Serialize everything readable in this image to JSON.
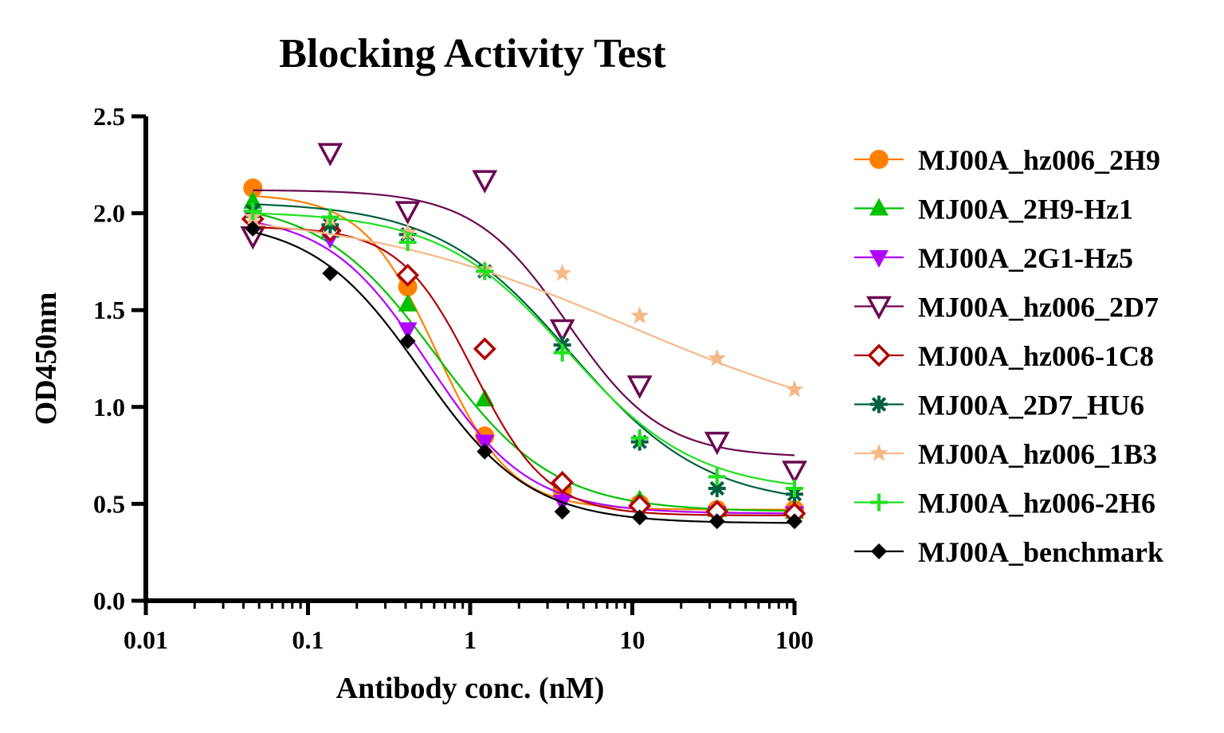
{
  "chart_data": {
    "type": "scatter",
    "title": "Blocking Activity Test",
    "xlabel": "Antibody conc. (nM)",
    "ylabel": "OD450nm",
    "xscale": "log",
    "xlim": [
      0.01,
      100
    ],
    "ylim": [
      0.0,
      2.5
    ],
    "xticks": [
      0.01,
      0.1,
      1,
      10,
      100
    ],
    "xtick_labels": [
      "0.01",
      "0.1",
      "1",
      "10",
      "100"
    ],
    "yticks": [
      0.0,
      0.5,
      1.0,
      1.5,
      2.0,
      2.5
    ],
    "ytick_labels": [
      "0.0",
      "0.5",
      "1.0",
      "1.5",
      "2.0",
      "2.5"
    ],
    "grid": false,
    "legend_position": "right",
    "x": [
      0.0457,
      0.137,
      0.412,
      1.23,
      3.7,
      11.1,
      33.3,
      100
    ],
    "series": [
      {
        "name": "MJ00A_hz006_2H9",
        "color": "#ff8000",
        "marker": "circle",
        "values": [
          2.13,
          1.91,
          1.62,
          0.85,
          0.57,
          0.5,
          0.47,
          0.47
        ],
        "fit": {
          "top": 2.1,
          "bottom": 0.47,
          "ec50": 0.62,
          "hill": 1.9
        }
      },
      {
        "name": "MJ00A_2H9-Hz1",
        "color": "#00c000",
        "marker": "triangle-up",
        "values": [
          2.06,
          1.91,
          1.53,
          1.04,
          0.62,
          0.52,
          0.47,
          0.46
        ],
        "fit": {
          "top": 2.07,
          "bottom": 0.46,
          "ec50": 0.62,
          "hill": 1.2
        }
      },
      {
        "name": "MJ00A_2G1-Hz5",
        "color": "#b000ff",
        "marker": "triangle-down",
        "values": [
          1.98,
          1.87,
          1.4,
          0.82,
          0.51,
          0.47,
          0.45,
          0.45
        ],
        "fit": {
          "top": 2.0,
          "bottom": 0.45,
          "ec50": 0.55,
          "hill": 1.4
        }
      },
      {
        "name": "MJ00A_hz006_2D7",
        "color": "#6a0a50",
        "marker": "triangle-down-open",
        "values": [
          1.88,
          2.31,
          2.01,
          2.17,
          1.4,
          1.11,
          0.82,
          0.67
        ],
        "fit": {
          "top": 2.12,
          "bottom": 0.74,
          "ec50": 4.0,
          "hill": 1.5
        }
      },
      {
        "name": "MJ00A_hz006-1C8",
        "color": "#b00000",
        "marker": "diamond-open",
        "values": [
          1.97,
          1.91,
          1.68,
          1.3,
          0.61,
          0.49,
          0.46,
          0.45
        ],
        "fit": {
          "top": 1.93,
          "bottom": 0.44,
          "ec50": 1.05,
          "hill": 1.9
        }
      },
      {
        "name": "MJ00A_2D7_HU6",
        "color": "#006040",
        "marker": "asterisk",
        "values": [
          2.01,
          1.94,
          1.89,
          1.7,
          1.32,
          0.82,
          0.58,
          0.55
        ],
        "fit": {
          "top": 2.06,
          "bottom": 0.49,
          "ec50": 4.2,
          "hill": 1.05
        }
      },
      {
        "name": "MJ00A_hz006_1B3",
        "color": "#f5b888",
        "marker": "star",
        "values": [
          1.98,
          1.97,
          1.9,
          1.71,
          1.69,
          1.47,
          1.25,
          1.09
        ],
        "fit": {
          "top": 2.02,
          "bottom": 0.8,
          "ec50": 10.0,
          "hill": 0.5
        }
      },
      {
        "name": "MJ00A_hz006-2H6",
        "color": "#20e020",
        "marker": "plus",
        "values": [
          2.01,
          1.98,
          1.85,
          1.7,
          1.28,
          0.84,
          0.64,
          0.58
        ],
        "fit": {
          "top": 2.01,
          "bottom": 0.56,
          "ec50": 4.0,
          "hill": 1.1
        }
      },
      {
        "name": "MJ00A_benchmark",
        "color": "#000000",
        "marker": "diamond",
        "values": [
          1.92,
          1.69,
          1.34,
          0.77,
          0.46,
          0.43,
          0.41,
          0.41
        ],
        "fit": {
          "top": 1.97,
          "bottom": 0.4,
          "ec50": 0.5,
          "hill": 1.3
        }
      }
    ]
  }
}
